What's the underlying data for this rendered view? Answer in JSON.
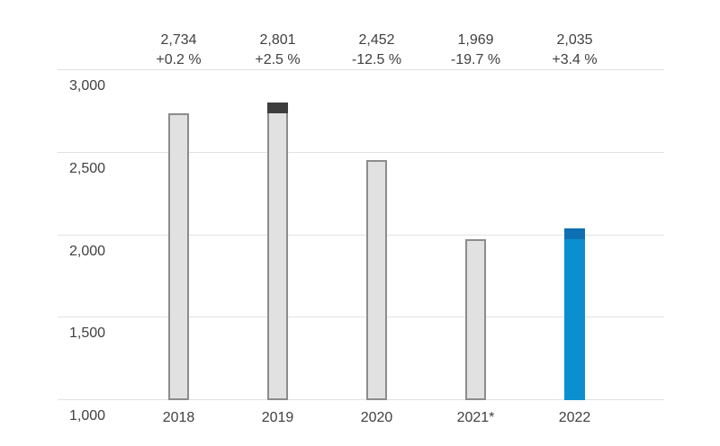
{
  "colors": {
    "text": "#404040",
    "gridline": "#e2e2e2",
    "bar_default_fill": "#e1e1e1",
    "bar_default_border": "#8c8c8c",
    "bar_dark_cap": "#3d3d3d",
    "bar_highlight_fill": "#0a90d0",
    "bar_highlight_cap": "#0e6fb2",
    "background": "#ffffff"
  },
  "chart_data": {
    "type": "bar",
    "title": "",
    "xlabel": "",
    "ylabel": "",
    "grid": true,
    "legend": "none",
    "ylim": [
      1000,
      3000
    ],
    "yticks": [
      3000,
      2500,
      2000,
      1500,
      1000
    ],
    "ytick_labels": [
      "3,000",
      "2,500",
      "2,000",
      "1,500",
      "1,000"
    ],
    "categories": [
      "2018",
      "2019",
      "2020",
      "2021*",
      "2022"
    ],
    "values": [
      2734,
      2801,
      2452,
      1969,
      2035
    ],
    "bars": [
      {
        "category": "2018",
        "value": 2734,
        "value_label": "2,734",
        "change_label": "+0.2 %",
        "style": "default",
        "cap": null
      },
      {
        "category": "2019",
        "value": 2801,
        "value_label": "2,801",
        "change_label": "+2.5 %",
        "style": "default",
        "cap": {
          "from": 2734,
          "color_key": "bar_dark_cap"
        }
      },
      {
        "category": "2020",
        "value": 2452,
        "value_label": "2,452",
        "change_label": "-12.5 %",
        "style": "default",
        "cap": null
      },
      {
        "category": "2021*",
        "value": 1969,
        "value_label": "1,969",
        "change_label": "-19.7 %",
        "style": "default",
        "cap": null
      },
      {
        "category": "2022",
        "value": 2035,
        "value_label": "2,035",
        "change_label": "+3.4 %",
        "style": "highlight",
        "cap": {
          "from": 1969,
          "color_key": "bar_highlight_cap"
        }
      }
    ]
  }
}
